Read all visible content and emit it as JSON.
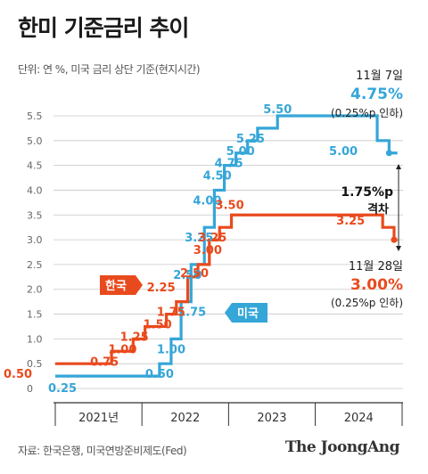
{
  "title": "한미 기준금리 추이",
  "subtitle": "단위: 연 %, 미국 금리 상단 기준(현지시간)",
  "source": "자료: 한국은행, 미국연방준비제도(Fed)",
  "brand": "The JoongAng",
  "colors": {
    "us": "#35a6d8",
    "korea": "#e94a1d",
    "grid": "#c8c8c8",
    "axis": "#333333"
  },
  "chart_data": {
    "type": "line",
    "step": true,
    "ylim": [
      0,
      5.5
    ],
    "y_ticks": [
      "0",
      "0.5",
      "1.0",
      "1.5",
      "2.0",
      "2.5",
      "3.0",
      "3.5",
      "4.0",
      "4.5",
      "5.0",
      "5.5"
    ],
    "x_labels": [
      "2021년",
      "2022",
      "2023",
      "2024"
    ],
    "grid": true,
    "series": [
      {
        "name": "미국",
        "color": "#35a6d8",
        "points": [
          [
            "2021-01-01",
            0.25
          ],
          [
            "2022-03-16",
            0.5
          ],
          [
            "2022-05-04",
            1.0
          ],
          [
            "2022-06-15",
            1.75
          ],
          [
            "2022-07-27",
            2.5
          ],
          [
            "2022-09-21",
            3.25
          ],
          [
            "2022-11-02",
            4.0
          ],
          [
            "2022-12-14",
            4.5
          ],
          [
            "2023-02-01",
            4.75
          ],
          [
            "2023-03-22",
            5.0
          ],
          [
            "2023-05-03",
            5.25
          ],
          [
            "2023-07-26",
            5.5
          ],
          [
            "2024-09-18",
            5.0
          ],
          [
            "2024-11-07",
            4.75
          ]
        ],
        "labels": [
          "0.25",
          "0.50",
          "1.00",
          "1.75",
          "2.50",
          "3.25",
          "4.00",
          "4.50",
          "4.75",
          "5.00",
          "5.25",
          "5.50",
          "5.00"
        ]
      },
      {
        "name": "한국",
        "color": "#e94a1d",
        "points": [
          [
            "2021-01-01",
            0.5
          ],
          [
            "2021-08-26",
            0.75
          ],
          [
            "2021-11-25",
            1.0
          ],
          [
            "2022-01-14",
            1.25
          ],
          [
            "2022-04-14",
            1.5
          ],
          [
            "2022-05-26",
            1.75
          ],
          [
            "2022-07-13",
            2.25
          ],
          [
            "2022-08-25",
            2.5
          ],
          [
            "2022-10-12",
            3.0
          ],
          [
            "2022-11-24",
            3.25
          ],
          [
            "2023-01-13",
            3.5
          ],
          [
            "2024-10-11",
            3.25
          ],
          [
            "2024-11-28",
            3.0
          ]
        ],
        "labels": [
          "0.50",
          "0.75",
          "1.00",
          "1.25",
          "1.50",
          "1.75",
          "2.25",
          "2.50",
          "3.00",
          "3.25",
          "3.50",
          "3.25"
        ]
      }
    ],
    "annotations": {
      "us_date": "11월 7일",
      "us_rate": "4.75%",
      "us_note": "(0.25%p 인하)",
      "gap_value": "1.75%p",
      "gap_label": "격차",
      "kr_date": "11월 28일",
      "kr_rate": "3.00%",
      "kr_note": "(0.25%p 인하)"
    }
  }
}
